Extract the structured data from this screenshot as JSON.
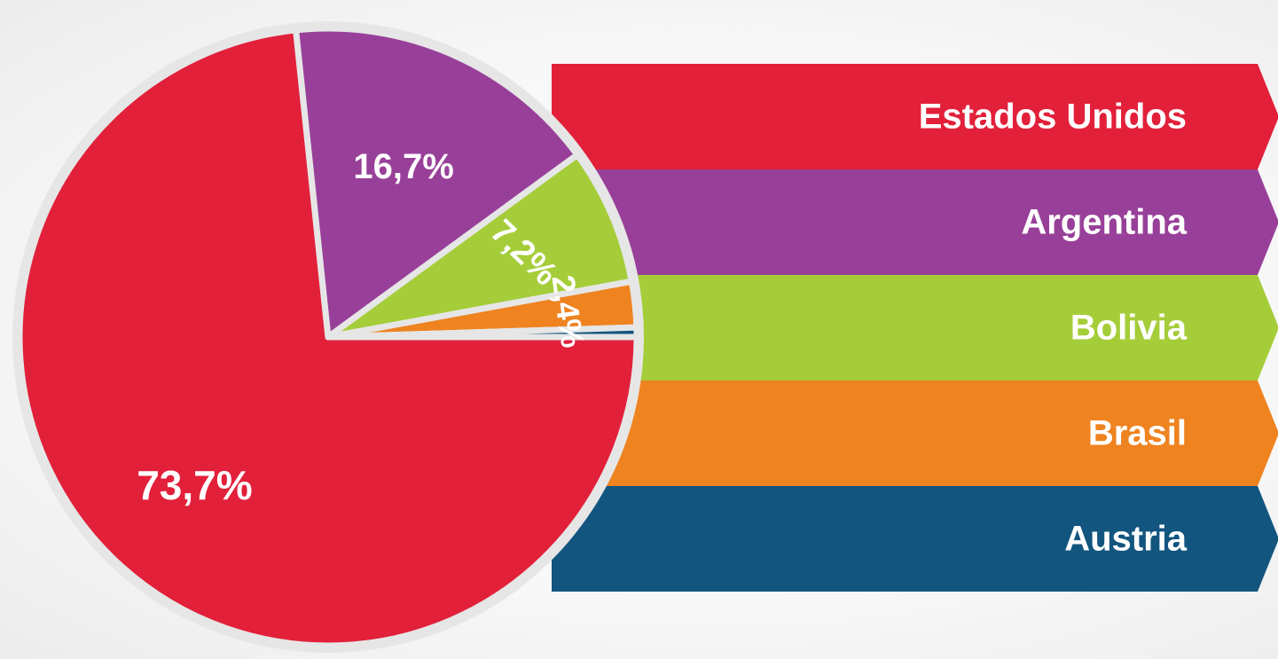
{
  "chart_data": {
    "type": "pie",
    "title": "",
    "slices": [
      {
        "name": "Estados Unidos",
        "value": 73.7,
        "label": "73,7%",
        "color": "#e2203a"
      },
      {
        "name": "Argentina",
        "value": 16.7,
        "label": "16,7%",
        "color": "#984099"
      },
      {
        "name": "Bolivia",
        "value": 7.2,
        "label": "7,2%",
        "color": "#a5cd3a"
      },
      {
        "name": "Brasil",
        "value": 2.4,
        "label": "2,4%",
        "color": "#ee8320"
      },
      {
        "name": "Austria",
        "value": 0.5,
        "label": "",
        "color": "#12557f"
      }
    ],
    "legend_placement": "right",
    "ring_color": "#e6e6e6",
    "separator_color": "#e6e6e6"
  }
}
